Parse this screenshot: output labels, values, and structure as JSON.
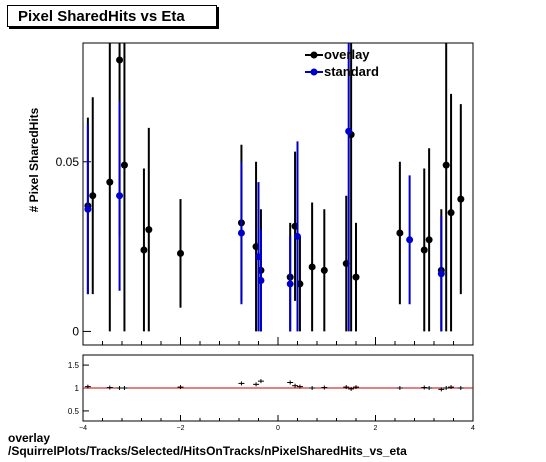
{
  "title": "Pixel SharedHits vs Eta",
  "footer": {
    "line1": "overlay",
    "line2": "/SquirrelPlots/Tracks/Selected/HitsOnTracks/nPixelSharedHits_vs_eta"
  },
  "colors": {
    "overlay": "#000000",
    "standard": "#0000cc",
    "ratio_line": "#cc0000"
  },
  "chart_data": [
    {
      "type": "scatter",
      "title": "Pixel SharedHits vs Eta",
      "xlabel": "",
      "ylabel": "# Pixel SharedHits",
      "xlim": [
        -4,
        4
      ],
      "ylim": [
        -0.004,
        0.085
      ],
      "yticks": [
        0,
        0.05
      ],
      "ytick_labels": [
        "0",
        "0.05"
      ],
      "legend": "top-right",
      "series": [
        {
          "name": "overlay",
          "points": [
            [
              -3.9,
              0.037,
              0.026
            ],
            [
              -3.8,
              0.04,
              0.029
            ],
            [
              -3.45,
              0.044,
              0.044
            ],
            [
              -3.25,
              0.08,
              0.052
            ],
            [
              -3.15,
              0.049,
              0.049
            ],
            [
              -2.75,
              0.024,
              0.024
            ],
            [
              -2.65,
              0.03,
              0.03
            ],
            [
              -2.0,
              0.023,
              0.016
            ],
            [
              -0.75,
              0.032,
              0.023
            ],
            [
              -0.45,
              0.025,
              0.025
            ],
            [
              -0.35,
              0.018,
              0.018
            ],
            [
              0.25,
              0.016,
              0.016
            ],
            [
              0.35,
              0.031,
              0.022
            ],
            [
              0.45,
              0.014,
              0.014
            ],
            [
              0.7,
              0.019,
              0.019
            ],
            [
              0.95,
              0.018,
              0.018
            ],
            [
              1.4,
              0.02,
              0.02
            ],
            [
              1.5,
              0.058,
              0.058
            ],
            [
              1.6,
              0.016,
              0.016
            ],
            [
              2.5,
              0.029,
              0.021
            ],
            [
              3.0,
              0.024,
              0.024
            ],
            [
              3.1,
              0.027,
              0.027
            ],
            [
              3.35,
              0.018,
              0.018
            ],
            [
              3.45,
              0.049,
              0.049
            ],
            [
              3.55,
              0.035,
              0.035
            ],
            [
              3.75,
              0.039,
              0.028
            ]
          ]
        },
        {
          "name": "standard",
          "points": [
            [
              -3.9,
              0.036,
              0.025
            ],
            [
              -3.25,
              0.04,
              0.028
            ],
            [
              -0.75,
              0.029,
              0.021
            ],
            [
              -0.4,
              0.022,
              0.022
            ],
            [
              -0.35,
              0.015,
              0.015
            ],
            [
              0.25,
              0.014,
              0.014
            ],
            [
              0.4,
              0.028,
              0.028
            ],
            [
              1.45,
              0.059,
              0.059
            ],
            [
              2.7,
              0.027,
              0.019
            ],
            [
              3.35,
              0.017,
              0.017
            ]
          ]
        }
      ]
    },
    {
      "type": "scatter",
      "xlabel": "",
      "ylabel": "",
      "xlim": [
        -4,
        4
      ],
      "ylim": [
        0.28,
        1.72
      ],
      "xticks": [
        -4,
        -2,
        0,
        2,
        4
      ],
      "xtick_labels": [
        "−4",
        "−2",
        "0",
        "2",
        "4"
      ],
      "yticks": [
        0.5,
        1,
        1.5
      ],
      "ytick_labels": [
        "0.5",
        "1",
        "1.5"
      ],
      "reference_line": 1,
      "series": [
        {
          "name": "",
          "points": [
            [
              -3.9,
              1.03
            ],
            [
              -3.45,
              1.01
            ],
            [
              -3.25,
              1.0
            ],
            [
              -3.15,
              1.0
            ],
            [
              -2.0,
              1.02
            ],
            [
              -0.75,
              1.1
            ],
            [
              -0.45,
              1.08
            ],
            [
              -0.35,
              1.15
            ],
            [
              0.25,
              1.12
            ],
            [
              0.35,
              1.05
            ],
            [
              0.45,
              1.03
            ],
            [
              0.7,
              1.0
            ],
            [
              0.95,
              1.01
            ],
            [
              1.4,
              1.02
            ],
            [
              1.5,
              0.98
            ],
            [
              1.6,
              1.02
            ],
            [
              2.5,
              1.0
            ],
            [
              3.0,
              1.01
            ],
            [
              3.1,
              1.0
            ],
            [
              3.35,
              0.97
            ],
            [
              3.45,
              1.0
            ],
            [
              3.55,
              1.02
            ],
            [
              3.75,
              1.0
            ]
          ]
        }
      ]
    }
  ]
}
